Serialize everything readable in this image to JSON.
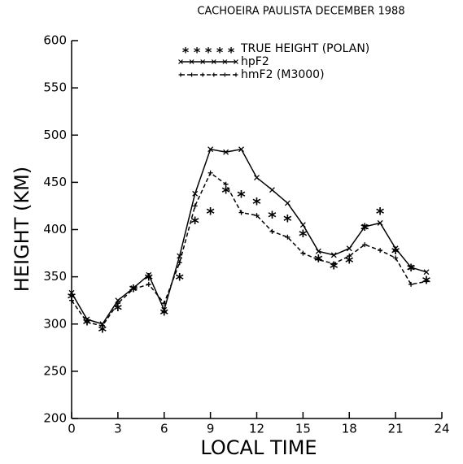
{
  "chart_data": {
    "type": "line",
    "title": "CACHOEIRA PAULISTA DECEMBER 1988",
    "x_label": "LOCAL TIME",
    "y_label": "HEIGHT (KM)",
    "x": [
      0,
      1,
      2,
      3,
      4,
      5,
      6,
      7,
      8,
      9,
      10,
      11,
      12,
      13,
      14,
      15,
      16,
      17,
      18,
      19,
      20,
      21,
      22,
      23
    ],
    "series": [
      {
        "name": "TRUE HEIGHT (POLAN)",
        "color": "#000000",
        "line": "none",
        "marker": "star",
        "values": [
          330,
          303,
          295,
          318,
          338,
          350,
          313,
          350,
          410,
          420,
          442,
          438,
          430,
          416,
          412,
          396,
          370,
          362,
          368,
          403,
          420,
          378,
          360,
          347
        ]
      },
      {
        "name": "hpF2",
        "color": "#000000",
        "line": "solid",
        "marker": "x",
        "values": [
          333,
          305,
          300,
          325,
          338,
          352,
          315,
          372,
          438,
          485,
          482,
          485,
          455,
          442,
          428,
          405,
          377,
          373,
          380,
          403,
          407,
          380,
          360,
          355
        ]
      },
      {
        "name": "hmF2 (M3000)",
        "color": "#000000",
        "line": "dashed",
        "marker": "plus",
        "values": [
          325,
          302,
          298,
          322,
          337,
          342,
          322,
          365,
          425,
          460,
          448,
          418,
          415,
          398,
          392,
          375,
          368,
          364,
          372,
          384,
          378,
          370,
          342,
          345
        ]
      }
    ],
    "xlim": [
      0,
      24
    ],
    "xticks": [
      0,
      3,
      6,
      9,
      12,
      15,
      18,
      21,
      24
    ],
    "ylim": [
      200,
      600
    ],
    "yticks": [
      200,
      250,
      300,
      350,
      400,
      450,
      500,
      550,
      600
    ],
    "grid": false
  }
}
